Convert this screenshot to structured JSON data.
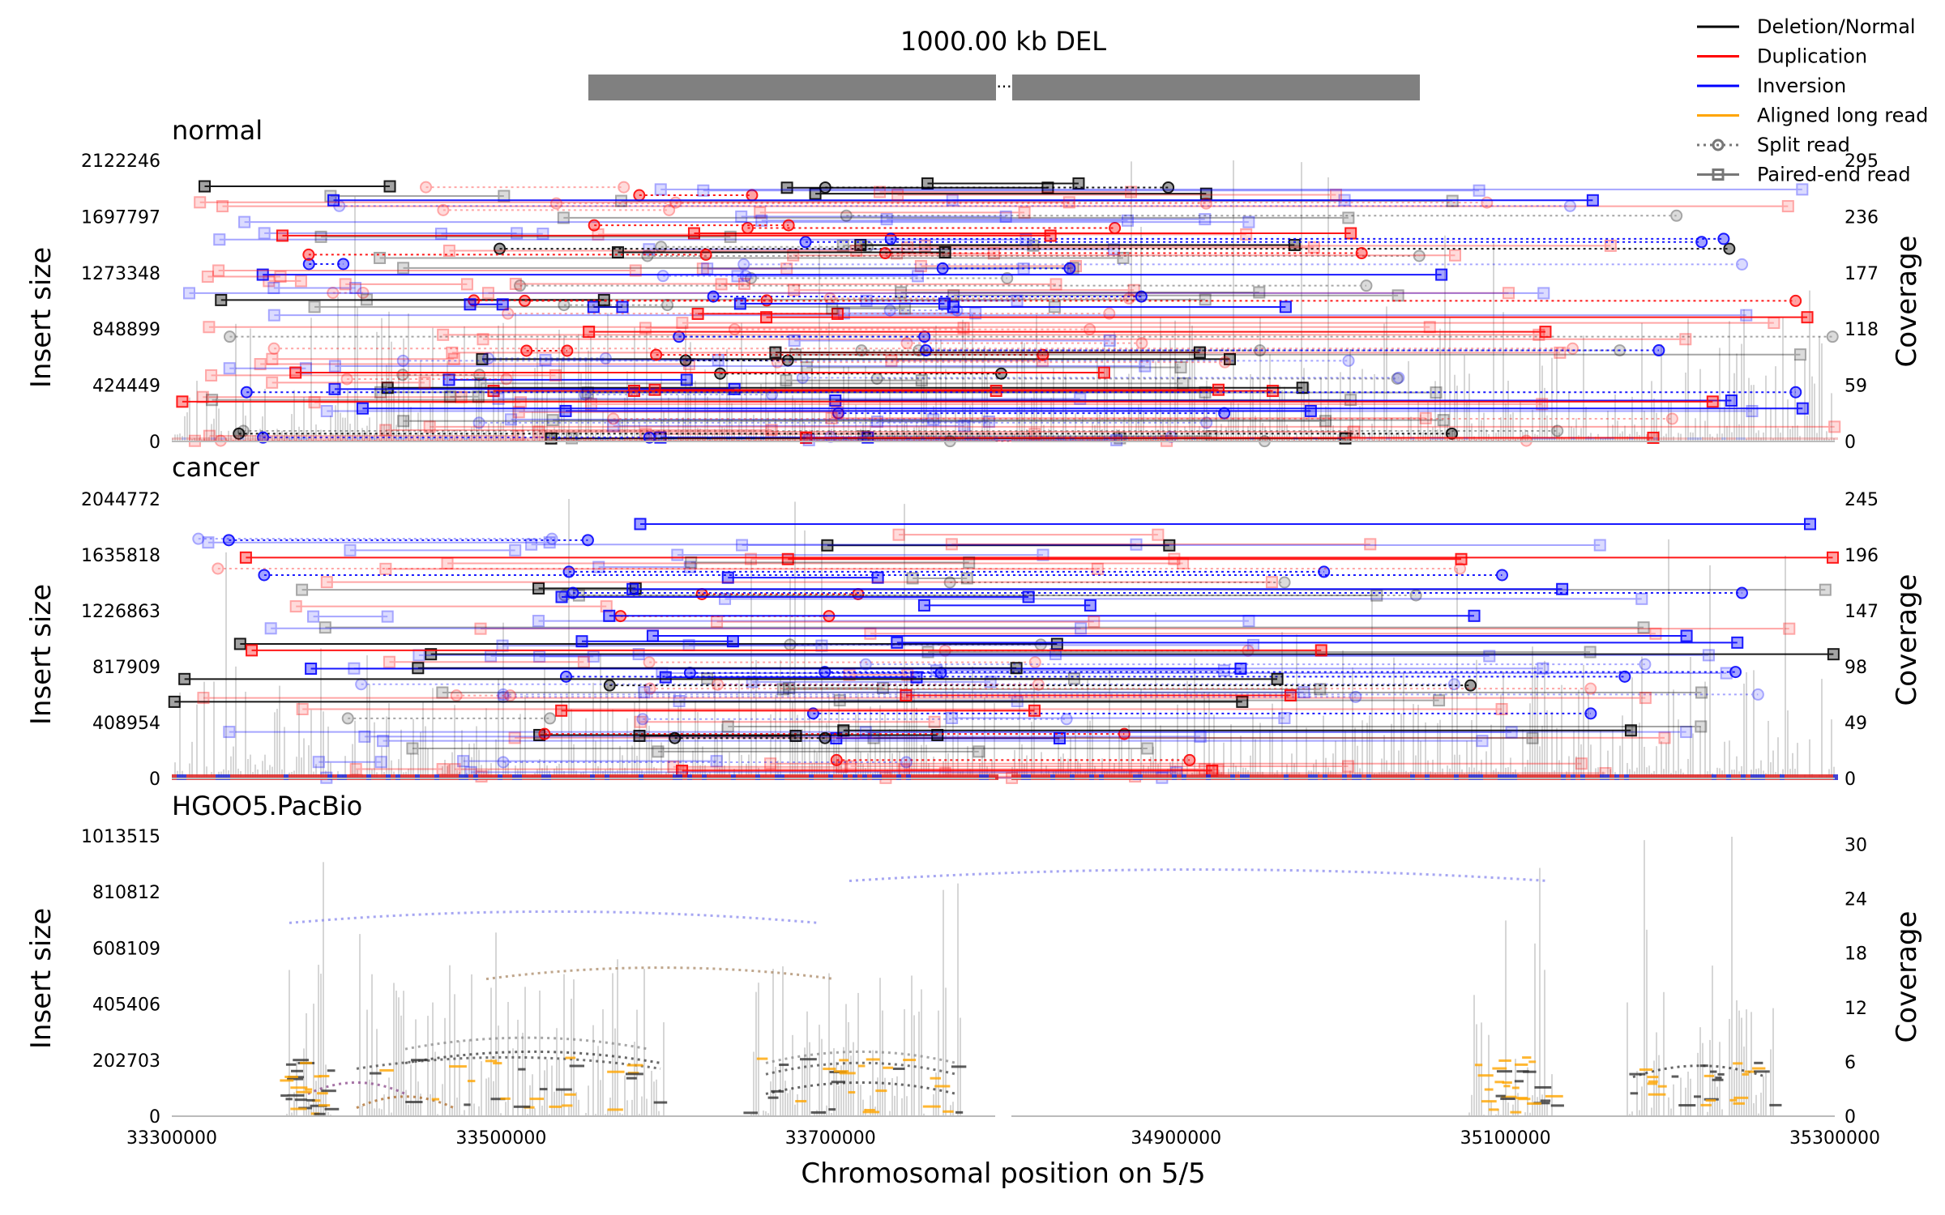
{
  "sv_title": "1000.00 kb DEL",
  "legend": [
    {
      "label": "Deletion/Normal",
      "color": "#000000",
      "kind": "line"
    },
    {
      "label": "Duplication",
      "color": "#ff0000",
      "kind": "line"
    },
    {
      "label": "Inversion",
      "color": "#0000ff",
      "kind": "line"
    },
    {
      "label": "Aligned long read",
      "color": "#ffa500",
      "kind": "line"
    },
    {
      "label": "Split read",
      "color": "#777777",
      "kind": "split"
    },
    {
      "label": "Paired-end read",
      "color": "#777777",
      "kind": "paired"
    }
  ],
  "x_axis": {
    "label": "Chromosomal position on 5/5",
    "left_ticks": [
      "33300000",
      "33500000",
      "33700000"
    ],
    "right_ticks": [
      "34900000",
      "35100000",
      "35300000"
    ],
    "left_range": [
      33300000,
      33800000
    ],
    "right_range": [
      34800000,
      35300000
    ],
    "break_marker": "..."
  },
  "colors": {
    "deletion": "#000000",
    "duplication": "#ff0000",
    "inversion": "#0000ff",
    "long_read": "#ffa500",
    "coverage": "#d9d9d9",
    "sv_bar": "#808080"
  },
  "chart_data": [
    {
      "type": "line",
      "title": "normal",
      "ylabel": "Insert size",
      "y2label": "Coverage",
      "yticks": [
        "0",
        "424449",
        "848899",
        "1273348",
        "1697797",
        "2122246"
      ],
      "y2ticks": [
        "0",
        "59",
        "118",
        "177",
        "236",
        "295"
      ],
      "ylim": [
        0,
        2122246
      ],
      "y2lim": [
        0,
        295
      ],
      "read_kind": "paired_split",
      "seed": 11,
      "n_reads": 190,
      "ymax_insert": 2000000
    },
    {
      "type": "line",
      "title": "cancer",
      "ylabel": "Insert size",
      "y2label": "Coverage",
      "yticks": [
        "0",
        "408954",
        "817909",
        "1226863",
        "1635818",
        "2044772"
      ],
      "y2ticks": [
        "0",
        "49",
        "98",
        "147",
        "196",
        "245"
      ],
      "ylim": [
        0,
        2044772
      ],
      "y2lim": [
        0,
        245
      ],
      "read_kind": "paired_split",
      "seed": 23,
      "n_reads": 130,
      "ymax_insert": 1900000
    },
    {
      "type": "line",
      "title": "HGOO5.PacBio",
      "ylabel": "Insert size",
      "y2label": "Coverage",
      "yticks": [
        "0",
        "202703",
        "405406",
        "608109",
        "810812",
        "1013515"
      ],
      "y2ticks": [
        "0",
        "6",
        "12",
        "18",
        "24",
        "30"
      ],
      "ylim": [
        0,
        1013515
      ],
      "y2lim": [
        0,
        30
      ],
      "read_kind": "long",
      "seed": 37,
      "n_reads": 0,
      "ymax_insert": 1013515
    }
  ]
}
